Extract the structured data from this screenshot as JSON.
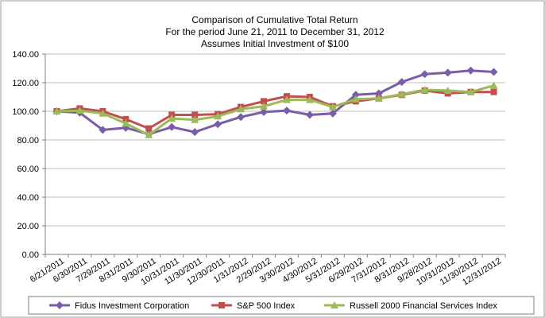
{
  "chart_data": {
    "type": "line",
    "title_lines": [
      "Comparison of Cumulative Total Return",
      "For the period June 21, 2011 to December 31, 2012",
      "Assumes Initial Investment of $100"
    ],
    "categories": [
      "6/21/2011",
      "6/30/2011",
      "7/29/2011",
      "8/31/2011",
      "9/30/2011",
      "10/31/2011",
      "11/30/2011",
      "12/30/2011",
      "1/31/2012",
      "2/29/2012",
      "3/30/2012",
      "4/30/2012",
      "5/31/2012",
      "6/29/2012",
      "7/31/2012",
      "8/31/2012",
      "9/28/2012",
      "10/31/2012",
      "11/30/2012",
      "12/31/2012"
    ],
    "yticks": [
      "0.00",
      "20.00",
      "40.00",
      "60.00",
      "80.00",
      "100.00",
      "120.00",
      "140.00"
    ],
    "ylim": [
      0,
      140
    ],
    "grid": true,
    "legend_position": "bottom",
    "series": [
      {
        "name": "Fidus Investment Corporation",
        "color": "#7b5ca8",
        "marker": "diamond",
        "values": [
          100,
          99,
          87,
          88.5,
          84,
          89,
          85.5,
          91,
          96,
          99.5,
          100.5,
          97.5,
          98.5,
          111.5,
          112.5,
          120.5,
          126,
          127,
          128.5,
          127.5
        ]
      },
      {
        "name": "S&P 500 Index",
        "color": "#c0504d",
        "marker": "square",
        "values": [
          100,
          102,
          100,
          94.5,
          88,
          97.5,
          97.5,
          98,
          103,
          107,
          110.5,
          110,
          103.5,
          107,
          109,
          111.5,
          114.5,
          112.5,
          113.5,
          113.5
        ]
      },
      {
        "name": "Russell 2000 Financial Services Index",
        "color": "#9bbb59",
        "marker": "triangle",
        "values": [
          100,
          100.5,
          98.5,
          91.5,
          83.5,
          95,
          94,
          96.5,
          101.5,
          103.5,
          108,
          108,
          103,
          108.5,
          109,
          112,
          115,
          114.5,
          113.5,
          118
        ]
      }
    ]
  }
}
